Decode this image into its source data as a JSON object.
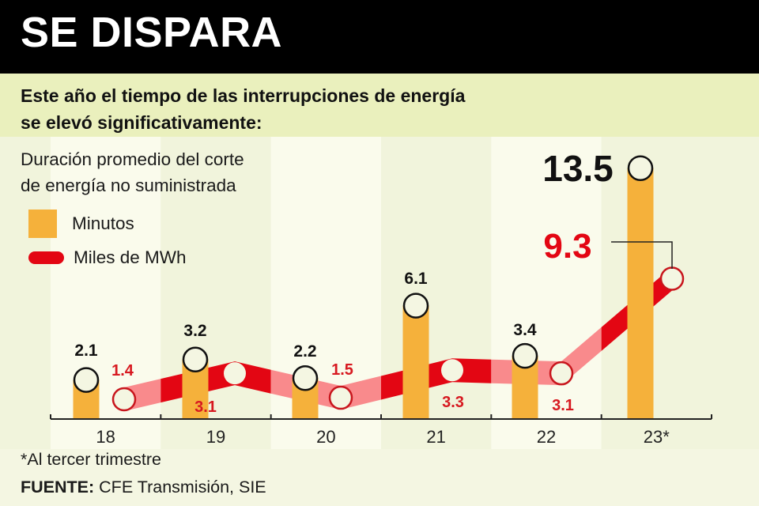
{
  "header": {
    "title": "SE DISPARA"
  },
  "subtitle": {
    "line1": "Este año el tiempo de las interrupciones de energía",
    "line2": "se elevó significativamente:"
  },
  "description": {
    "line1": "Duración promedio del corte",
    "line2": "de energía no suministrada"
  },
  "legend": [
    {
      "label": "Minutos",
      "color": "#f5b13b"
    },
    {
      "label": "Miles de MWh",
      "color": "#e30613"
    }
  ],
  "footnote": "*Al tercer trimestre",
  "source": {
    "label": "FUENTE:",
    "text": "CFE Transmisión, SIE"
  },
  "colors": {
    "bar": "#f5b13b",
    "ribbon_dark": "#e30613",
    "ribbon_light": "#f98a8c",
    "band_light": "#fafbec",
    "band_dark": "#f1f4dc",
    "label_red": "#d71920"
  },
  "chart_data": {
    "type": "bar+line",
    "title": "SE DISPARA",
    "categories": [
      "18",
      "19",
      "20",
      "21",
      "22",
      "23*"
    ],
    "series": [
      {
        "name": "Minutos",
        "type": "bar",
        "values": [
          2.1,
          3.2,
          2.2,
          6.1,
          3.4,
          13.5
        ],
        "labels": [
          "2.1",
          "3.2",
          "2.2",
          "6.1",
          "3.4",
          "13.5"
        ]
      },
      {
        "name": "Miles de MWh",
        "type": "line",
        "values": [
          1.4,
          3.1,
          1.5,
          3.3,
          3.1,
          9.3
        ],
        "labels": [
          "1.4",
          "3.1",
          "1.5",
          "3.3",
          "3.1",
          "9.3"
        ]
      }
    ],
    "xlabel": "",
    "ylabel": "",
    "grid": false,
    "legend_position": "top-left"
  }
}
